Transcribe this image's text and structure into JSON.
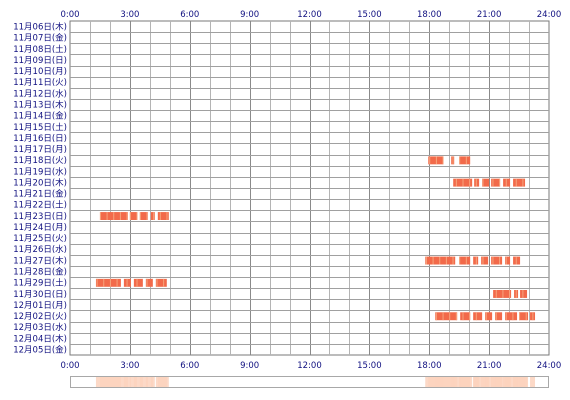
{
  "chart_data": {
    "type": "heatmap",
    "x_ticks": [
      "0:00",
      "3:00",
      "6:00",
      "9:00",
      "12:00",
      "15:00",
      "18:00",
      "21:00",
      "24:00"
    ],
    "xlim": [
      0,
      24
    ],
    "grid": true,
    "rows": [
      "11月06日(木)",
      "11月07日(金)",
      "11月08日(土)",
      "11月09日(日)",
      "11月10日(月)",
      "11月11日(火)",
      "11月12日(水)",
      "11月13日(木)",
      "11月14日(金)",
      "11月15日(土)",
      "11月16日(日)",
      "11月17日(月)",
      "11月18日(火)",
      "11月19日(水)",
      "11月20日(木)",
      "11月21日(金)",
      "11月22日(土)",
      "11月23日(日)",
      "11月24日(月)",
      "11月25日(火)",
      "11月26日(水)",
      "11月27日(木)",
      "11月28日(金)",
      "11月29日(土)",
      "11月30日(日)",
      "12月01日(月)",
      "12月02日(火)",
      "12月03日(水)",
      "12月04日(木)",
      "12月05日(金)"
    ],
    "activity_color": "#f26a4a",
    "activity_light": "#f6a47c",
    "summary_color": "#fbd2bd",
    "activity": [
      {
        "row": 12,
        "spans": [
          [
            17.95,
            18.7
          ],
          [
            19.1,
            19.25
          ],
          [
            19.5,
            20.05
          ]
        ]
      },
      {
        "row": 14,
        "spans": [
          [
            19.2,
            20.15
          ],
          [
            20.25,
            20.5
          ],
          [
            20.65,
            21.0
          ],
          [
            21.1,
            21.55
          ],
          [
            21.7,
            22.05
          ],
          [
            22.2,
            22.8
          ]
        ]
      },
      {
        "row": 17,
        "spans": [
          [
            1.5,
            2.9
          ],
          [
            3.0,
            3.35
          ],
          [
            3.5,
            3.9
          ],
          [
            4.05,
            4.25
          ],
          [
            4.4,
            4.95
          ]
        ]
      },
      {
        "row": 21,
        "spans": [
          [
            17.8,
            19.3
          ],
          [
            19.5,
            20.05
          ],
          [
            20.2,
            20.45
          ],
          [
            20.6,
            20.95
          ],
          [
            21.1,
            21.65
          ],
          [
            21.8,
            22.05
          ],
          [
            22.2,
            22.55
          ]
        ]
      },
      {
        "row": 23,
        "spans": [
          [
            1.3,
            2.55
          ],
          [
            2.7,
            3.05
          ],
          [
            3.2,
            3.65
          ],
          [
            3.8,
            4.15
          ],
          [
            4.3,
            4.85
          ]
        ]
      },
      {
        "row": 24,
        "spans": [
          [
            21.2,
            22.1
          ],
          [
            22.25,
            22.45
          ],
          [
            22.55,
            22.9
          ]
        ]
      },
      {
        "row": 26,
        "spans": [
          [
            18.3,
            19.4
          ],
          [
            19.55,
            20.05
          ],
          [
            20.2,
            20.65
          ],
          [
            20.8,
            21.15
          ],
          [
            21.3,
            21.65
          ],
          [
            21.8,
            22.4
          ],
          [
            22.5,
            22.95
          ],
          [
            23.05,
            23.3
          ]
        ]
      }
    ]
  }
}
